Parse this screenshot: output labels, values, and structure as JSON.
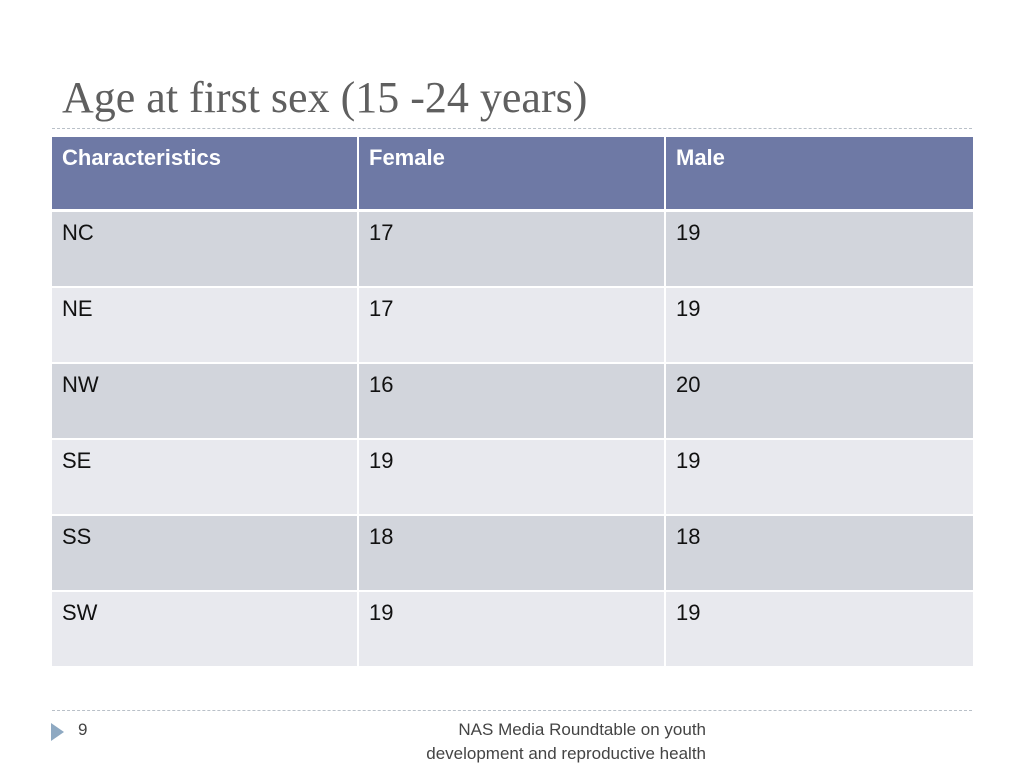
{
  "slide": {
    "title": "Age at first sex (15 -24 years)",
    "page_number": "9",
    "footer": {
      "line1": "NAS Media Roundtable on youth",
      "line2": "development and reproductive health"
    }
  },
  "table": {
    "headers": [
      "Characteristics",
      "Female",
      "Male"
    ],
    "rows": [
      [
        "NC",
        "17",
        "19"
      ],
      [
        "NE",
        "17",
        "19"
      ],
      [
        "NW",
        "16",
        "20"
      ],
      [
        "SE",
        "19",
        "19"
      ],
      [
        "SS",
        "18",
        "18"
      ],
      [
        "SW",
        "19",
        "19"
      ]
    ]
  },
  "colors": {
    "header_bg": "#6e79a5",
    "row_odd_bg": "#d2d5dc",
    "row_even_bg": "#e8e9ee",
    "title_color": "#5f5f5f",
    "bullet_color": "#8ea9c2"
  }
}
